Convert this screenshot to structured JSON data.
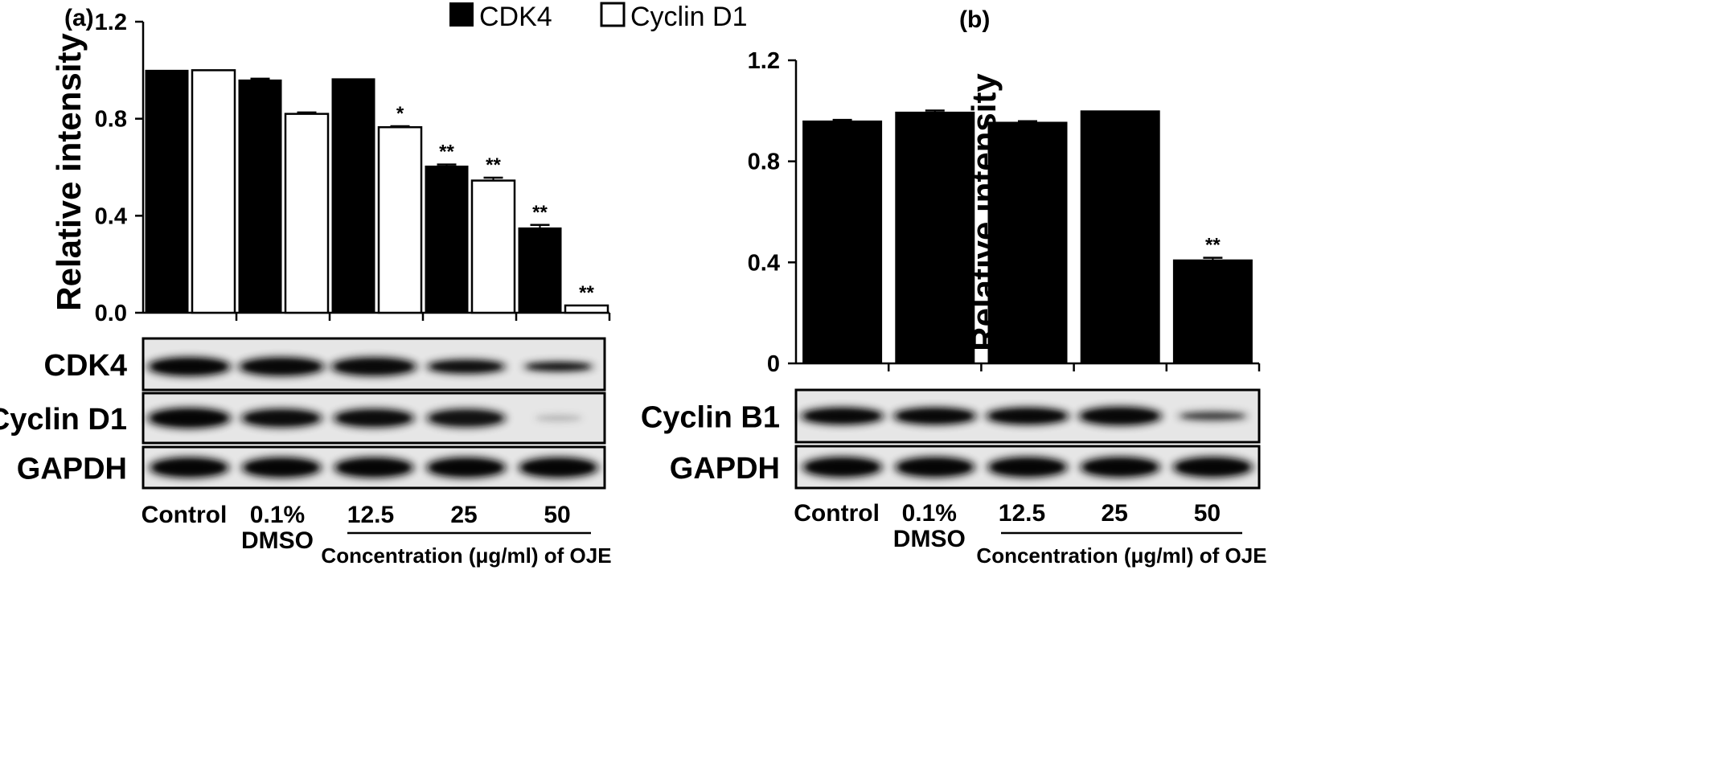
{
  "chart_data": [
    {
      "panel_label": "(a)",
      "type": "bar",
      "ylabel": "Relative intensity",
      "ylim": [
        0,
        1.2
      ],
      "yticks": [
        "0.0",
        "0.4",
        "0.8",
        "1.2"
      ],
      "categories": [
        "Control",
        "0.1%\nDMSO",
        "12.5",
        "25",
        "50"
      ],
      "legend_position": "top",
      "series": [
        {
          "name": "CDK4",
          "color": "#000000",
          "fill": "solid",
          "values": [
            1.0,
            0.96,
            0.965,
            0.605,
            0.35
          ],
          "errors": [
            0,
            0.005,
            0,
            0.006,
            0.012
          ],
          "significance": [
            "",
            "",
            "",
            "**",
            "**"
          ]
        },
        {
          "name": "Cyclin D1",
          "color": "#ffffff",
          "fill": "outline",
          "values": [
            1.0,
            0.82,
            0.765,
            0.545,
            0.03
          ],
          "errors": [
            0,
            0.006,
            0.004,
            0.012,
            0
          ],
          "significance": [
            "",
            "",
            "*",
            "**",
            "**"
          ]
        }
      ],
      "blots": [
        "CDK4",
        "Cyclin D1",
        "GAPDH"
      ],
      "xgroup_label": "Concentration (μg/ml) of OJE"
    },
    {
      "panel_label": "(b)",
      "type": "bar",
      "ylabel": "Relative intensity",
      "ylim": [
        0,
        1.2
      ],
      "yticks": [
        "0",
        "0.4",
        "0.8",
        "1.2"
      ],
      "categories": [
        "Control",
        "0.1%\nDMSO",
        "12.5",
        "25",
        "50"
      ],
      "series": [
        {
          "name": "",
          "color": "#000000",
          "fill": "solid",
          "values": [
            0.96,
            0.995,
            0.955,
            1.0,
            0.41
          ],
          "errors": [
            0.004,
            0.006,
            0.004,
            0,
            0.008
          ],
          "significance": [
            "",
            "",
            "",
            "",
            "**"
          ]
        }
      ],
      "blots": [
        "Cyclin B1",
        "GAPDH"
      ],
      "xgroup_label": "Concentration (μg/ml) of OJE"
    }
  ]
}
